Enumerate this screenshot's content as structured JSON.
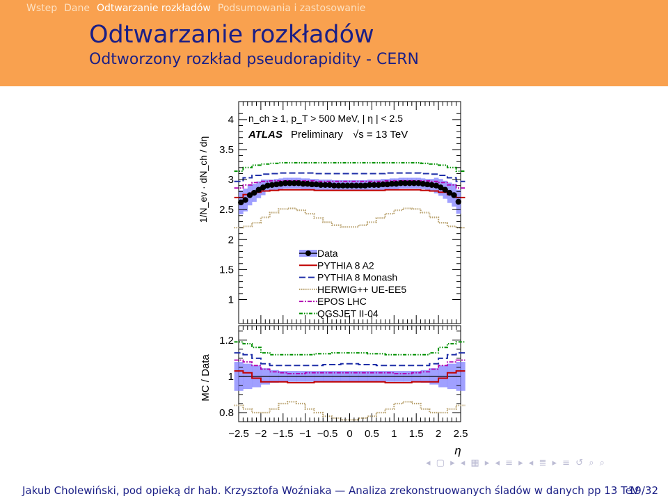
{
  "nav": {
    "items": [
      "Wstep",
      "Dane",
      "Odtwarzanie rozkładów",
      "Podsumowania i zastosowanie"
    ],
    "active_index": 2
  },
  "slide": {
    "title": "Odtwarzanie rozkładów",
    "subtitle": "Odtworzony rozkład pseudorapidity - CERN"
  },
  "footer": {
    "left": "Jakub Cholewiński, pod opieką dr hab. Krzysztofa Woźniaka — Analiza zrekonstruowanych śladów w danych pp 13 TeV",
    "page": "19/32"
  },
  "colors": {
    "header_bg": "#f9a14f",
    "title": "#1b1f86",
    "data": "#000000",
    "data_band": "#8080ff",
    "pythia_a2": "#c00000",
    "pythia_monash": "#1f2fa8",
    "herwig": "#b9a26f",
    "epos": "#b000b0",
    "qgsjet": "#009000"
  },
  "chart_data": [
    {
      "type": "line",
      "panel": "main",
      "ylabel": "1/N_ev · dN_ch / dη",
      "ylim": [
        0.6,
        4.3
      ],
      "xlim": [
        -2.5,
        2.5
      ],
      "yticks": [
        "4",
        "3.5",
        "3",
        "2.5",
        "2",
        "1.5",
        "1"
      ],
      "annotations": {
        "cuts": "n_ch ≥ 1, p_T > 500 MeV, | η | < 2.5",
        "atlas": "ATLAS",
        "preliminary": "Preliminary",
        "energy": "√s = 13 TeV"
      },
      "legend_placement": "center-right",
      "series": [
        {
          "name": "Data",
          "x": [
            -2.45,
            -2.35,
            -2.25,
            -2.15,
            -2.05,
            -1.95,
            -1.85,
            -1.75,
            -1.65,
            -1.55,
            -1.45,
            -1.35,
            -1.25,
            -1.15,
            -1.05,
            -0.95,
            -0.85,
            -0.75,
            -0.65,
            -0.55,
            -0.45,
            -0.35,
            -0.25,
            -0.15,
            -0.05,
            0.05,
            0.15,
            0.25,
            0.35,
            0.45,
            0.55,
            0.65,
            0.75,
            0.85,
            0.95,
            1.05,
            1.15,
            1.25,
            1.35,
            1.45,
            1.55,
            1.65,
            1.75,
            1.85,
            1.95,
            2.05,
            2.15,
            2.25,
            2.35,
            2.45
          ],
          "values": [
            2.62,
            2.66,
            2.74,
            2.78,
            2.83,
            2.87,
            2.9,
            2.91,
            2.92,
            2.93,
            2.94,
            2.94,
            2.94,
            2.94,
            2.93,
            2.93,
            2.92,
            2.92,
            2.91,
            2.91,
            2.91,
            2.9,
            2.9,
            2.9,
            2.9,
            2.9,
            2.9,
            2.9,
            2.9,
            2.91,
            2.91,
            2.91,
            2.92,
            2.92,
            2.93,
            2.93,
            2.94,
            2.94,
            2.94,
            2.94,
            2.94,
            2.93,
            2.92,
            2.91,
            2.9,
            2.87,
            2.83,
            2.78,
            2.74,
            2.63
          ],
          "band": [
            0.2,
            0.19,
            0.17,
            0.15,
            0.14,
            0.13,
            0.1,
            0.09,
            0.09,
            0.09,
            0.09,
            0.09,
            0.09,
            0.09,
            0.09,
            0.09,
            0.09,
            0.09,
            0.09,
            0.09,
            0.09,
            0.09,
            0.09,
            0.09,
            0.09,
            0.09,
            0.09,
            0.09,
            0.09,
            0.09,
            0.09,
            0.09,
            0.09,
            0.09,
            0.09,
            0.09,
            0.09,
            0.09,
            0.09,
            0.09,
            0.09,
            0.09,
            0.09,
            0.1,
            0.13,
            0.14,
            0.15,
            0.17,
            0.19,
            0.2
          ]
        },
        {
          "name": "PYTHIA 8 A2",
          "x": [
            -2.5,
            -2.3,
            -2.1,
            -1.9,
            -1.7,
            -1.5,
            -1.3,
            -1.1,
            -0.9,
            -0.7,
            -0.5,
            -0.3,
            -0.1,
            0.1,
            0.3,
            0.5,
            0.7,
            0.9,
            1.1,
            1.3,
            1.5,
            1.7,
            1.9,
            2.1,
            2.3,
            2.5
          ],
          "values": [
            2.7,
            2.75,
            2.79,
            2.81,
            2.82,
            2.83,
            2.83,
            2.83,
            2.83,
            2.82,
            2.82,
            2.82,
            2.82,
            2.82,
            2.82,
            2.82,
            2.82,
            2.83,
            2.83,
            2.83,
            2.83,
            2.82,
            2.81,
            2.79,
            2.75,
            2.7
          ]
        },
        {
          "name": "PYTHIA 8 Monash",
          "x": [
            -2.5,
            -2.3,
            -2.1,
            -1.9,
            -1.7,
            -1.5,
            -1.3,
            -1.1,
            -0.9,
            -0.7,
            -0.5,
            -0.3,
            -0.1,
            0.1,
            0.3,
            0.5,
            0.7,
            0.9,
            1.1,
            1.3,
            1.5,
            1.7,
            1.9,
            2.1,
            2.3,
            2.5
          ],
          "values": [
            2.97,
            3.03,
            3.07,
            3.09,
            3.1,
            3.11,
            3.11,
            3.11,
            3.11,
            3.1,
            3.1,
            3.1,
            3.1,
            3.1,
            3.1,
            3.1,
            3.1,
            3.11,
            3.11,
            3.11,
            3.11,
            3.1,
            3.09,
            3.07,
            3.03,
            2.97
          ]
        },
        {
          "name": "HERWIG++ UE-EE5",
          "x": [
            -2.5,
            -2.3,
            -2.1,
            -1.9,
            -1.7,
            -1.5,
            -1.3,
            -1.1,
            -0.9,
            -0.7,
            -0.5,
            -0.3,
            -0.1,
            0.1,
            0.3,
            0.5,
            0.7,
            0.9,
            1.1,
            1.3,
            1.5,
            1.7,
            1.9,
            2.1,
            2.3,
            2.5
          ],
          "values": [
            2.2,
            2.22,
            2.28,
            2.37,
            2.45,
            2.51,
            2.52,
            2.49,
            2.43,
            2.36,
            2.29,
            2.24,
            2.21,
            2.21,
            2.24,
            2.29,
            2.36,
            2.43,
            2.49,
            2.52,
            2.51,
            2.45,
            2.37,
            2.28,
            2.22,
            2.2
          ]
        },
        {
          "name": "EPOS LHC",
          "x": [
            -2.5,
            -2.3,
            -2.1,
            -1.9,
            -1.7,
            -1.5,
            -1.3,
            -1.1,
            -0.9,
            -0.7,
            -0.5,
            -0.3,
            -0.1,
            0.1,
            0.3,
            0.5,
            0.7,
            0.9,
            1.1,
            1.3,
            1.5,
            1.7,
            1.9,
            2.1,
            2.3,
            2.5
          ],
          "values": [
            2.86,
            2.91,
            2.95,
            2.97,
            2.98,
            2.98,
            2.98,
            2.98,
            2.98,
            2.97,
            2.97,
            2.97,
            2.97,
            2.97,
            2.97,
            2.97,
            2.97,
            2.98,
            2.98,
            2.98,
            2.98,
            2.98,
            2.97,
            2.95,
            2.91,
            2.86
          ]
        },
        {
          "name": "QGSJET II-04",
          "x": [
            -2.5,
            -2.3,
            -2.1,
            -1.9,
            -1.7,
            -1.5,
            -1.3,
            -1.1,
            -0.9,
            -0.7,
            -0.5,
            -0.3,
            -0.1,
            0.1,
            0.3,
            0.5,
            0.7,
            0.9,
            1.1,
            1.3,
            1.5,
            1.7,
            1.9,
            2.1,
            2.3,
            2.5
          ],
          "values": [
            3.14,
            3.2,
            3.24,
            3.26,
            3.27,
            3.28,
            3.28,
            3.28,
            3.28,
            3.28,
            3.28,
            3.28,
            3.28,
            3.28,
            3.28,
            3.28,
            3.28,
            3.28,
            3.28,
            3.28,
            3.28,
            3.27,
            3.26,
            3.24,
            3.2,
            3.14
          ]
        }
      ]
    },
    {
      "type": "line",
      "panel": "ratio",
      "ylabel": "MC / Data",
      "xlabel": "η",
      "ylim": [
        0.75,
        1.28
      ],
      "xlim": [
        -2.5,
        2.5
      ],
      "yticks": [
        "1.2",
        "1",
        "0.8"
      ],
      "xticks": [
        "−2.5",
        "−2",
        "−1.5",
        "−1",
        "−0.5",
        "0",
        "0.5",
        "1",
        "1.5",
        "2",
        "2.5"
      ],
      "series": [
        {
          "name": "Data",
          "x": [
            -2.5,
            -2.3,
            -2.1,
            -1.9,
            -1.7,
            -1.5,
            -1.3,
            -1.1,
            -0.9,
            -0.7,
            -0.5,
            -0.3,
            -0.1,
            0.1,
            0.3,
            0.5,
            0.7,
            0.9,
            1.1,
            1.3,
            1.5,
            1.7,
            1.9,
            2.1,
            2.3,
            2.5
          ],
          "values": [
            1,
            1,
            1,
            1,
            1,
            1,
            1,
            1,
            1,
            1,
            1,
            1,
            1,
            1,
            1,
            1,
            1,
            1,
            1,
            1,
            1,
            1,
            1,
            1,
            1,
            1
          ],
          "band": [
            0.08,
            0.07,
            0.06,
            0.045,
            0.035,
            0.03,
            0.03,
            0.03,
            0.03,
            0.03,
            0.03,
            0.03,
            0.03,
            0.03,
            0.03,
            0.03,
            0.03,
            0.03,
            0.03,
            0.03,
            0.03,
            0.035,
            0.045,
            0.06,
            0.07,
            0.08
          ]
        },
        {
          "name": "PYTHIA 8 A2",
          "x": [
            -2.5,
            -2.3,
            -2.1,
            -1.9,
            -1.7,
            -1.5,
            -1.3,
            -1.1,
            -0.9,
            -0.7,
            -0.5,
            -0.3,
            -0.1,
            0.1,
            0.3,
            0.5,
            0.7,
            0.9,
            1.1,
            1.3,
            1.5,
            1.7,
            1.9,
            2.1,
            2.3,
            2.5
          ],
          "values": [
            1.03,
            1.02,
            0.99,
            0.97,
            0.97,
            0.97,
            0.965,
            0.965,
            0.965,
            0.97,
            0.97,
            0.97,
            0.97,
            0.97,
            0.97,
            0.97,
            0.97,
            0.965,
            0.965,
            0.965,
            0.97,
            0.97,
            0.97,
            0.99,
            1.02,
            1.03
          ]
        },
        {
          "name": "PYTHIA 8 Monash",
          "x": [
            -2.5,
            -2.3,
            -2.1,
            -1.9,
            -1.7,
            -1.5,
            -1.3,
            -1.1,
            -0.9,
            -0.7,
            -0.5,
            -0.3,
            -0.1,
            0.1,
            0.3,
            0.5,
            0.7,
            0.9,
            1.1,
            1.3,
            1.5,
            1.7,
            1.9,
            2.1,
            2.3,
            2.5
          ],
          "values": [
            1.13,
            1.12,
            1.1,
            1.07,
            1.06,
            1.06,
            1.06,
            1.06,
            1.06,
            1.06,
            1.065,
            1.065,
            1.07,
            1.07,
            1.065,
            1.065,
            1.06,
            1.06,
            1.06,
            1.06,
            1.06,
            1.06,
            1.07,
            1.1,
            1.12,
            1.13
          ]
        },
        {
          "name": "HERWIG++ UE-EE5",
          "x": [
            -2.5,
            -2.3,
            -2.1,
            -1.9,
            -1.7,
            -1.5,
            -1.3,
            -1.1,
            -0.9,
            -0.7,
            -0.5,
            -0.3,
            -0.1,
            0.1,
            0.3,
            0.5,
            0.7,
            0.9,
            1.1,
            1.3,
            1.5,
            1.7,
            1.9,
            2.1,
            2.3,
            2.5
          ],
          "values": [
            0.84,
            0.82,
            0.8,
            0.8,
            0.82,
            0.85,
            0.86,
            0.85,
            0.82,
            0.8,
            0.78,
            0.77,
            0.76,
            0.76,
            0.77,
            0.78,
            0.8,
            0.82,
            0.85,
            0.86,
            0.85,
            0.82,
            0.8,
            0.8,
            0.82,
            0.84
          ]
        },
        {
          "name": "EPOS LHC",
          "x": [
            -2.5,
            -2.3,
            -2.1,
            -1.9,
            -1.7,
            -1.5,
            -1.3,
            -1.1,
            -0.9,
            -0.7,
            -0.5,
            -0.3,
            -0.1,
            0.1,
            0.3,
            0.5,
            0.7,
            0.9,
            1.1,
            1.3,
            1.5,
            1.7,
            1.9,
            2.1,
            2.3,
            2.5
          ],
          "values": [
            1.09,
            1.08,
            1.06,
            1.04,
            1.025,
            1.02,
            1.015,
            1.015,
            1.02,
            1.02,
            1.02,
            1.02,
            1.02,
            1.02,
            1.02,
            1.02,
            1.02,
            1.02,
            1.015,
            1.015,
            1.02,
            1.025,
            1.04,
            1.06,
            1.08,
            1.09
          ]
        },
        {
          "name": "QGSJET II-04",
          "x": [
            -2.5,
            -2.3,
            -2.1,
            -1.9,
            -1.7,
            -1.5,
            -1.3,
            -1.1,
            -0.9,
            -0.7,
            -0.5,
            -0.3,
            -0.1,
            0.1,
            0.3,
            0.5,
            0.7,
            0.9,
            1.1,
            1.3,
            1.5,
            1.7,
            1.9,
            2.1,
            2.3,
            2.5
          ],
          "values": [
            1.19,
            1.18,
            1.16,
            1.13,
            1.12,
            1.12,
            1.12,
            1.12,
            1.12,
            1.125,
            1.125,
            1.13,
            1.13,
            1.13,
            1.13,
            1.125,
            1.125,
            1.12,
            1.12,
            1.12,
            1.12,
            1.12,
            1.13,
            1.16,
            1.18,
            1.19
          ]
        }
      ]
    }
  ]
}
